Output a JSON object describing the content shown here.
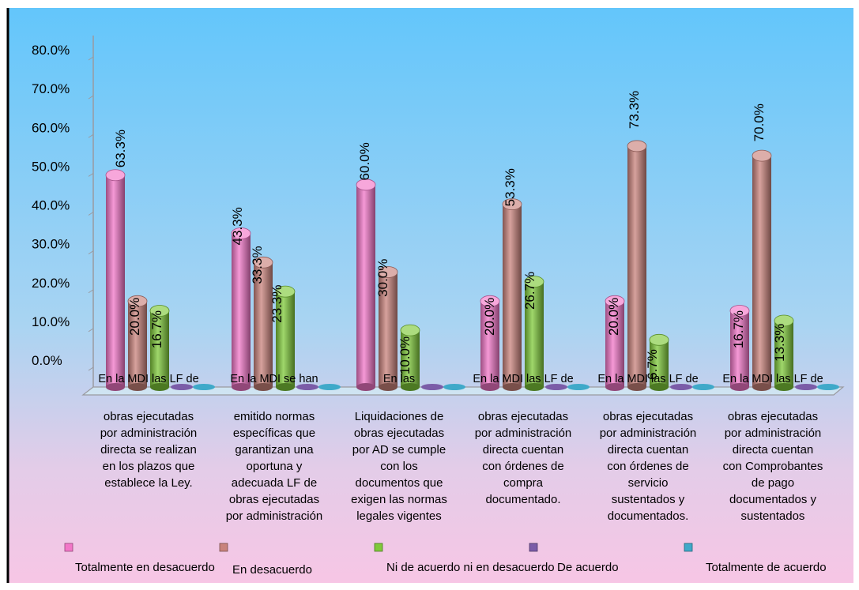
{
  "chart_data": {
    "type": "bar",
    "ytick_labels": [
      "0.0%",
      "10.0%",
      "20.0%",
      "30.0%",
      "40.0%",
      "50.0%",
      "60.0%",
      "70.0%",
      "80.0%"
    ],
    "ylim": [
      0,
      80
    ],
    "categories": [
      {
        "line1": "En la MDI las LF de",
        "lines": [
          "obras ejecutadas",
          "por administración",
          "directa se realizan",
          "en los plazos que",
          "establece la Ley."
        ]
      },
      {
        "line1": "En la MDI se han",
        "lines": [
          "emitido normas",
          "específicas que",
          "garantizan una",
          "oportuna y",
          "adecuada LF de",
          "obras ejecutadas",
          "por administración"
        ]
      },
      {
        "line1": "En las",
        "lines": [
          "Liquidaciones de",
          "obras ejecutadas",
          "por AD se cumple",
          "con los",
          "documentos que",
          "exigen las normas",
          "legales vigentes"
        ]
      },
      {
        "line1": "En la MDI las  LF de",
        "lines": [
          "obras ejecutadas",
          "por administración",
          "directa cuentan",
          "con órdenes de",
          "compra",
          "documentado."
        ]
      },
      {
        "line1": "En la MDI las  LF de",
        "lines": [
          "obras ejecutadas",
          "por administración",
          "directa cuentan",
          "con órdenes de",
          "servicio",
          "sustentados y",
          "documentados."
        ]
      },
      {
        "line1": "En la MDI las  LF de",
        "lines": [
          "obras ejecutadas",
          "por administración",
          "directa cuentan",
          "con Comprobantes",
          "de pago",
          "documentados y",
          "sustentados"
        ]
      }
    ],
    "series": [
      {
        "name": "Totalmente en desacuerdo",
        "color": "#f277c8",
        "values": [
          63.3,
          43.3,
          60.0,
          20.0,
          20.0,
          16.7
        ],
        "labels": [
          "63.3%",
          "43.3%",
          "60.0%",
          "20.0%",
          "20.0%",
          "16.7%"
        ]
      },
      {
        "name": "En desacuerdo",
        "color": "#c9837c",
        "values": [
          20.0,
          33.3,
          30.0,
          53.3,
          73.3,
          70.0
        ],
        "labels": [
          "20.0%",
          "33.3%",
          "30.0%",
          "53.3%",
          "73.3%",
          "70.0%"
        ]
      },
      {
        "name": "Ni de acuerdo ni en desacuerdo",
        "color": "#7fc93a",
        "values": [
          16.7,
          23.3,
          10.0,
          26.7,
          6.7,
          13.3
        ],
        "labels": [
          "16.7%",
          "23.3%",
          "10.0%",
          "26.7%",
          "6.7%",
          "13.3%"
        ]
      },
      {
        "name": "De acuerdo",
        "color": "#7b5ca8",
        "values": [
          0,
          0,
          0,
          0,
          0,
          0
        ],
        "labels": []
      },
      {
        "name": "Totalmente de acuerdo",
        "color": "#3fa9c9",
        "values": [
          0,
          0,
          0,
          0,
          0,
          0
        ],
        "labels": []
      }
    ],
    "legend": "bottom"
  }
}
